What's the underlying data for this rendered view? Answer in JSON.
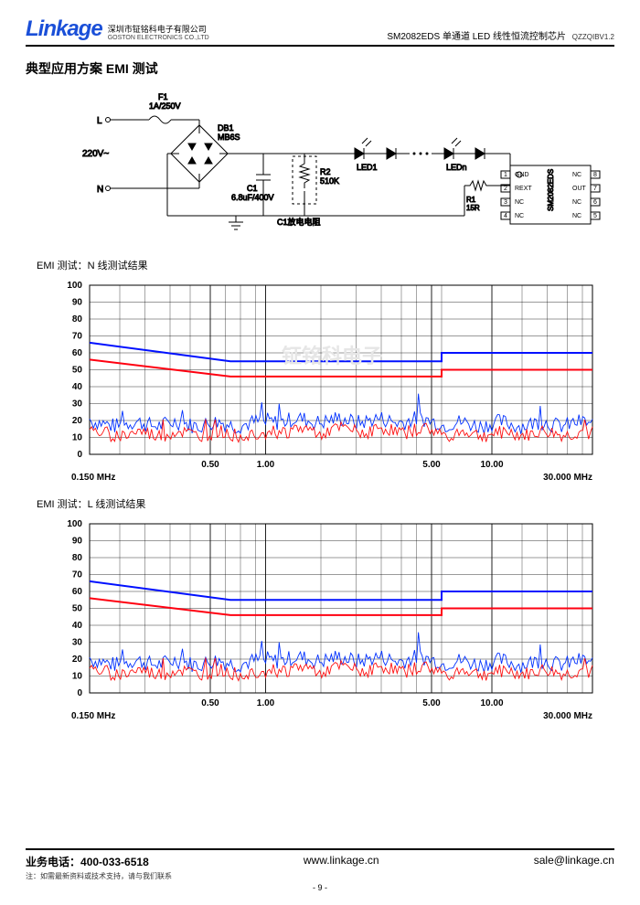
{
  "header": {
    "logo": "Linkage",
    "company_cn": "深圳市钲铭科电子有限公司",
    "company_en": "GOSTON ELECTRONICS CO.,LTD",
    "product": "SM2082EDS 单通道 LED 线性恒流控制芯片",
    "doccode": "QZZQIBV1.2"
  },
  "section_title": "典型应用方案 EMI 测试",
  "schematic": {
    "L": "L",
    "N": "N",
    "vin": "220V~",
    "F1": "F1",
    "F1v": "1A/250V",
    "DB1": "DB1",
    "DB1v": "MB6S",
    "C1": "C1",
    "C1v": "6.8uF/400V",
    "R2": "R2",
    "R2v": "510K",
    "C1note": "C1放电电阻",
    "LED1": "LED1",
    "LEDn": "LEDn",
    "R1": "R1",
    "R1v": "15R",
    "chip": "SM2082EDS",
    "pins_left": [
      "GND",
      "REXT",
      "NC",
      "NC"
    ],
    "pins_right": [
      "NC",
      "OUT",
      "NC",
      "NC"
    ],
    "pins_ln": [
      "1",
      "2",
      "3",
      "4"
    ],
    "pins_rn": [
      "8",
      "7",
      "6",
      "5"
    ]
  },
  "chart_common": {
    "ylim": [
      0,
      100
    ],
    "ytick_step": 10,
    "xticks_label": [
      "0.50",
      "1.00",
      "5.00",
      "10.00"
    ],
    "xmin_label": "0.150 MHz",
    "xmax_label": "30.000 MHz",
    "grid_color": "#000000",
    "limit_blue_color": "#0010ff",
    "limit_red_color": "#ff0010",
    "trace_blue_color": "#0030ff",
    "trace_red_color": "#ff1010",
    "bg_color": "#ffffff",
    "limit_blue_pts": [
      [
        0,
        66
      ],
      [
        0.28,
        55
      ],
      [
        0.7,
        55
      ],
      [
        0.7,
        60
      ],
      [
        1,
        60
      ]
    ],
    "limit_red_pts": [
      [
        0,
        56
      ],
      [
        0.28,
        46
      ],
      [
        0.7,
        46
      ],
      [
        0.7,
        50
      ],
      [
        1,
        50
      ]
    ]
  },
  "chart_n": {
    "title": "EMI 测试：N 线测试结果",
    "blue_base": 18,
    "blue_amp": 6,
    "red_base": 12,
    "red_amp": 5
  },
  "chart_l": {
    "title": "EMI 测试：L 线测试结果",
    "blue_base": 18,
    "blue_amp": 6,
    "red_base": 12,
    "red_amp": 5
  },
  "watermark": "钲铭科电子",
  "footer": {
    "phone_lbl": "业务电话：",
    "phone": "400-033-6518",
    "url": "www.linkage.cn",
    "email": "sale@linkage.cn",
    "note": "注：如需最新资料或技术支持，请与我们联系",
    "page": "- 9 -"
  }
}
